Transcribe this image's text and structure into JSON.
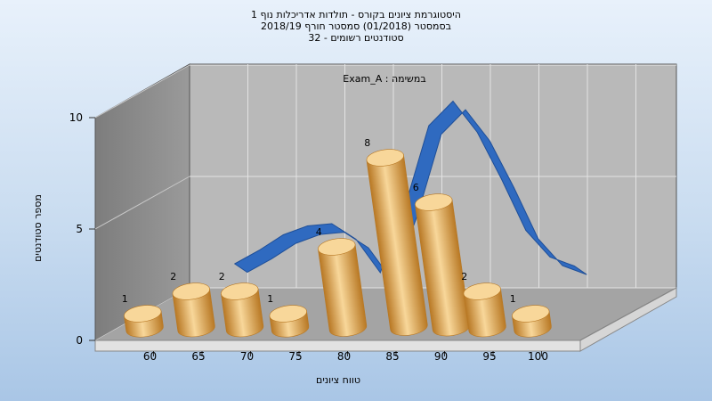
{
  "title_lines": [
    "היסטוגרמת ציונים בקורס - תולדות אדריכלות נוף 1",
    "בסמסטר  (01/2018)  סמסטר חורף 2018/19",
    "סטודנטים רשומים - 32"
  ],
  "colors": {
    "bar": "#e0a24a",
    "bar_light": "#f8d79a",
    "bar_dark": "#b87824",
    "curve": "#2f6ac0",
    "curve_dark": "#1f4f98"
  },
  "chart_data": {
    "type": "bar",
    "annotation": "Exam_A : במשימה",
    "xlabel": "טווח ציונים",
    "ylabel": "מספר סטודנטים",
    "x_ticks": [
      "60",
      "65",
      "70",
      "75",
      "80",
      "85",
      "90",
      "95",
      "100"
    ],
    "y_ticks": [
      "0",
      "5",
      "10"
    ],
    "ylim": [
      0,
      10
    ],
    "bars": [
      {
        "x": 57.5,
        "value": 1
      },
      {
        "x": 62.5,
        "value": 2
      },
      {
        "x": 67.5,
        "value": 2
      },
      {
        "x": 72.5,
        "value": 1
      },
      {
        "x": 77.5,
        "value": 4
      },
      {
        "x": 82.5,
        "value": 8
      },
      {
        "x": 87.5,
        "value": 6
      },
      {
        "x": 92.5,
        "value": 2
      },
      {
        "x": 97.5,
        "value": 1
      }
    ],
    "curve": {
      "type": "normal-distribution",
      "points": [
        {
          "x": 62.5,
          "y": 2.0
        },
        {
          "x": 65,
          "y": 2.6
        },
        {
          "x": 67.5,
          "y": 3.3
        },
        {
          "x": 70,
          "y": 3.7
        },
        {
          "x": 72.5,
          "y": 3.8
        },
        {
          "x": 75,
          "y": 3.1
        },
        {
          "x": 77.5,
          "y": 1.6
        },
        {
          "x": 80,
          "y": 4.5
        },
        {
          "x": 82.5,
          "y": 8.2
        },
        {
          "x": 85,
          "y": 9.3
        },
        {
          "x": 87.5,
          "y": 7.9
        },
        {
          "x": 90,
          "y": 5.8
        },
        {
          "x": 92.5,
          "y": 3.5
        },
        {
          "x": 95,
          "y": 2.3
        },
        {
          "x": 97.5,
          "y": 1.9
        }
      ]
    },
    "grid": true,
    "legend": "none"
  }
}
